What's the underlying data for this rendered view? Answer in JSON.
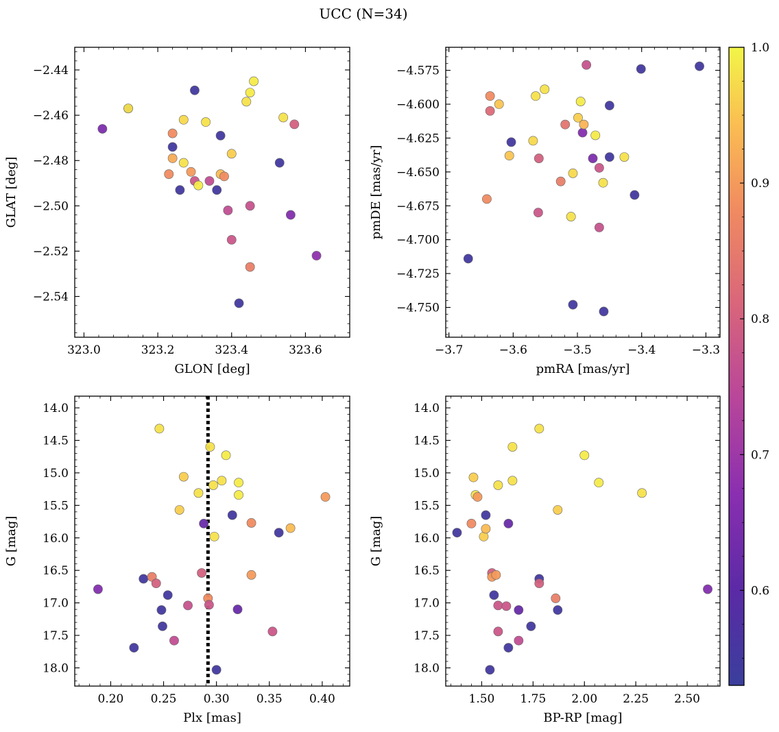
{
  "title": "UCC (N=34)",
  "colorbar": {
    "cmap": "plasma",
    "range": [
      0.53,
      1.0
    ],
    "ticks": [
      "0.6",
      "0.7",
      "0.8",
      "0.9",
      "1.0"
    ],
    "tick_values": [
      0.6,
      0.7,
      0.8,
      0.9,
      1.0
    ]
  },
  "chart_data": [
    {
      "type": "scatter",
      "name": "glon-glat",
      "xlabel": "GLON [deg]",
      "ylabel": "GLAT [deg]",
      "xlim": [
        322.975,
        323.72
      ],
      "ylim": [
        -2.558,
        -2.43
      ],
      "invert_y": false,
      "xticks": [
        323.0,
        323.2,
        323.4,
        323.6
      ],
      "xtick_labels": [
        "323.0",
        "323.2",
        "323.4",
        "323.6"
      ],
      "yticks": [
        -2.54,
        -2.52,
        -2.5,
        -2.48,
        -2.46,
        -2.44
      ],
      "ytick_labels": [
        "−2.54",
        "−2.52",
        "−2.50",
        "−2.48",
        "−2.46",
        "−2.44"
      ],
      "points": [
        [
          323.12,
          -2.457,
          0.57
        ],
        [
          323.12,
          -2.457,
          0.98
        ],
        [
          323.05,
          -2.466,
          0.65
        ],
        [
          323.3,
          -2.449,
          0.55
        ],
        [
          323.24,
          -2.468,
          0.88
        ],
        [
          323.24,
          -2.474,
          0.55
        ],
        [
          323.24,
          -2.479,
          0.92
        ],
        [
          323.23,
          -2.486,
          0.88
        ],
        [
          323.27,
          -2.462,
          0.97
        ],
        [
          323.27,
          -2.481,
          0.98
        ],
        [
          323.26,
          -2.493,
          0.55
        ],
        [
          323.29,
          -2.485,
          0.9
        ],
        [
          323.3,
          -2.489,
          0.78
        ],
        [
          323.31,
          -2.491,
          0.99
        ],
        [
          323.33,
          -2.463,
          0.98
        ],
        [
          323.34,
          -2.489,
          0.76
        ],
        [
          323.37,
          -2.469,
          0.55
        ],
        [
          323.36,
          -2.493,
          0.55
        ],
        [
          323.37,
          -2.486,
          0.94
        ],
        [
          323.38,
          -2.487,
          0.88
        ],
        [
          323.4,
          -2.477,
          0.96
        ],
        [
          323.39,
          -2.502,
          0.76
        ],
        [
          323.4,
          -2.515,
          0.78
        ],
        [
          323.42,
          -2.543,
          0.55
        ],
        [
          323.44,
          -2.454,
          0.98
        ],
        [
          323.45,
          -2.45,
          0.99
        ],
        [
          323.46,
          -2.445,
          0.99
        ],
        [
          323.45,
          -2.5,
          0.77
        ],
        [
          323.45,
          -2.527,
          0.86
        ],
        [
          323.53,
          -2.481,
          0.55
        ],
        [
          323.54,
          -2.461,
          0.98
        ],
        [
          323.56,
          -2.504,
          0.66
        ],
        [
          323.57,
          -2.464,
          0.8
        ],
        [
          323.63,
          -2.522,
          0.68
        ]
      ]
    },
    {
      "type": "scatter",
      "name": "pmra-pmde",
      "xlabel": "pmRA [mas/yr]",
      "ylabel": "pmDE [mas/yr]",
      "xlim": [
        -3.705,
        -3.278
      ],
      "ylim": [
        -4.772,
        -4.558
      ],
      "invert_y": false,
      "xticks": [
        -3.7,
        -3.6,
        -3.5,
        -3.4,
        -3.3
      ],
      "xtick_labels": [
        "−3.7",
        "−3.6",
        "−3.5",
        "−3.4",
        "−3.3"
      ],
      "yticks": [
        -4.75,
        -4.725,
        -4.7,
        -4.675,
        -4.65,
        -4.625,
        -4.6,
        -4.575
      ],
      "ytick_labels": [
        "−4.750",
        "−4.725",
        "−4.700",
        "−4.675",
        "−4.650",
        "−4.625",
        "−4.600",
        "−4.575"
      ],
      "points": [
        [
          -3.67,
          -4.714,
          0.55
        ],
        [
          -3.641,
          -4.67,
          0.88
        ],
        [
          -3.636,
          -4.594,
          0.88
        ],
        [
          -3.636,
          -4.605,
          0.82
        ],
        [
          -3.622,
          -4.6,
          0.95
        ],
        [
          -3.606,
          -4.638,
          0.95
        ],
        [
          -3.603,
          -4.628,
          0.55
        ],
        [
          -3.569,
          -4.627,
          0.97
        ],
        [
          -3.565,
          -4.594,
          0.98
        ],
        [
          -3.561,
          -4.68,
          0.78
        ],
        [
          -3.56,
          -4.64,
          0.8
        ],
        [
          -3.551,
          -4.589,
          0.98
        ],
        [
          -3.526,
          -4.657,
          0.86
        ],
        [
          -3.519,
          -4.615,
          0.84
        ],
        [
          -3.51,
          -4.683,
          0.98
        ],
        [
          -3.507,
          -4.651,
          0.97
        ],
        [
          -3.507,
          -4.748,
          0.55
        ],
        [
          -3.499,
          -4.61,
          0.96
        ],
        [
          -3.495,
          -4.598,
          0.99
        ],
        [
          -3.492,
          -4.621,
          0.66
        ],
        [
          -3.49,
          -4.615,
          0.93
        ],
        [
          -3.486,
          -4.571,
          0.77
        ],
        [
          -3.476,
          -4.64,
          0.65
        ],
        [
          -3.472,
          -4.623,
          0.99
        ],
        [
          -3.466,
          -4.647,
          0.78
        ],
        [
          -3.466,
          -4.691,
          0.77
        ],
        [
          -3.46,
          -4.658,
          0.98
        ],
        [
          -3.459,
          -4.753,
          0.55
        ],
        [
          -3.45,
          -4.601,
          0.55
        ],
        [
          -3.45,
          -4.639,
          0.55
        ],
        [
          -3.427,
          -4.639,
          0.98
        ],
        [
          -3.411,
          -4.667,
          0.55
        ],
        [
          -3.401,
          -4.574,
          0.55
        ],
        [
          -3.31,
          -4.572,
          0.55
        ]
      ]
    },
    {
      "type": "scatter",
      "name": "plx-g",
      "xlabel": "Plx [mas]",
      "ylabel": "G [mag]",
      "xlim": [
        0.166,
        0.426
      ],
      "ylim": [
        13.82,
        18.28
      ],
      "invert_y": true,
      "vline": 0.292,
      "xticks": [
        0.2,
        0.25,
        0.3,
        0.35,
        0.4
      ],
      "xtick_labels": [
        "0.20",
        "0.25",
        "0.30",
        "0.35",
        "0.40"
      ],
      "yticks": [
        14.0,
        14.5,
        15.0,
        15.5,
        16.0,
        16.5,
        17.0,
        17.5,
        18.0
      ],
      "ytick_labels": [
        "14.0",
        "14.5",
        "15.0",
        "15.5",
        "16.0",
        "16.5",
        "17.0",
        "17.5",
        "18.0"
      ],
      "points": [
        [
          0.188,
          16.79,
          0.66
        ],
        [
          0.222,
          17.69,
          0.55
        ],
        [
          0.231,
          16.63,
          0.55
        ],
        [
          0.239,
          16.6,
          0.86
        ],
        [
          0.243,
          16.7,
          0.8
        ],
        [
          0.246,
          14.32,
          0.98
        ],
        [
          0.248,
          17.11,
          0.55
        ],
        [
          0.249,
          17.36,
          0.55
        ],
        [
          0.254,
          16.88,
          0.55
        ],
        [
          0.26,
          17.58,
          0.76
        ],
        [
          0.265,
          15.57,
          0.96
        ],
        [
          0.269,
          15.06,
          0.96
        ],
        [
          0.273,
          17.04,
          0.77
        ],
        [
          0.283,
          15.31,
          0.98
        ],
        [
          0.286,
          16.54,
          0.8
        ],
        [
          0.288,
          15.78,
          0.62
        ],
        [
          0.292,
          16.93,
          0.88
        ],
        [
          0.293,
          17.03,
          0.78
        ],
        [
          0.294,
          14.6,
          0.98
        ],
        [
          0.297,
          15.19,
          0.98
        ],
        [
          0.298,
          15.98,
          0.98
        ],
        [
          0.3,
          18.03,
          0.55
        ],
        [
          0.305,
          15.12,
          0.98
        ],
        [
          0.309,
          14.73,
          0.99
        ],
        [
          0.315,
          15.65,
          0.55
        ],
        [
          0.32,
          17.1,
          0.62
        ],
        [
          0.321,
          15.15,
          0.99
        ],
        [
          0.321,
          15.34,
          0.99
        ],
        [
          0.333,
          15.77,
          0.88
        ],
        [
          0.333,
          16.57,
          0.9
        ],
        [
          0.353,
          17.44,
          0.78
        ],
        [
          0.359,
          15.92,
          0.55
        ],
        [
          0.37,
          15.85,
          0.94
        ],
        [
          0.403,
          15.37,
          0.9
        ]
      ]
    },
    {
      "type": "scatter",
      "name": "bprp-g",
      "xlabel": "BP-RP [mag]",
      "ylabel": "G [mag]",
      "xlim": [
        1.325,
        2.66
      ],
      "ylim": [
        13.82,
        18.28
      ],
      "invert_y": true,
      "xticks": [
        1.5,
        1.75,
        2.0,
        2.25,
        2.5
      ],
      "xtick_labels": [
        "1.50",
        "1.75",
        "2.00",
        "2.25",
        "2.50"
      ],
      "yticks": [
        14.0,
        14.5,
        15.0,
        15.5,
        16.0,
        16.5,
        17.0,
        17.5,
        18.0
      ],
      "ytick_labels": [
        "14.0",
        "14.5",
        "15.0",
        "15.5",
        "16.0",
        "16.5",
        "17.0",
        "17.5",
        "18.0"
      ],
      "points": [
        [
          1.38,
          15.92,
          0.55
        ],
        [
          1.46,
          15.07,
          0.96
        ],
        [
          1.47,
          15.34,
          0.98
        ],
        [
          1.48,
          15.37,
          0.9
        ],
        [
          1.45,
          15.78,
          0.88
        ],
        [
          1.51,
          15.98,
          0.96
        ],
        [
          1.52,
          15.86,
          0.94
        ],
        [
          1.52,
          15.65,
          0.55
        ],
        [
          1.54,
          18.03,
          0.55
        ],
        [
          1.55,
          16.54,
          0.8
        ],
        [
          1.55,
          16.6,
          0.9
        ],
        [
          1.56,
          16.88,
          0.55
        ],
        [
          1.57,
          16.57,
          0.9
        ],
        [
          1.58,
          15.19,
          0.98
        ],
        [
          1.58,
          17.04,
          0.78
        ],
        [
          1.58,
          17.44,
          0.78
        ],
        [
          1.62,
          17.05,
          0.78
        ],
        [
          1.63,
          17.69,
          0.55
        ],
        [
          1.63,
          15.78,
          0.62
        ],
        [
          1.65,
          14.6,
          0.98
        ],
        [
          1.65,
          15.12,
          0.98
        ],
        [
          1.68,
          17.11,
          0.62
        ],
        [
          1.68,
          17.58,
          0.76
        ],
        [
          1.74,
          17.36,
          0.55
        ],
        [
          1.78,
          14.32,
          0.98
        ],
        [
          1.78,
          16.63,
          0.55
        ],
        [
          1.78,
          16.7,
          0.8
        ],
        [
          1.86,
          16.93,
          0.86
        ],
        [
          1.87,
          15.57,
          0.96
        ],
        [
          1.87,
          17.11,
          0.55
        ],
        [
          2.0,
          14.73,
          0.99
        ],
        [
          2.07,
          15.15,
          0.99
        ],
        [
          2.28,
          15.31,
          0.98
        ],
        [
          2.6,
          16.79,
          0.66
        ]
      ]
    }
  ]
}
